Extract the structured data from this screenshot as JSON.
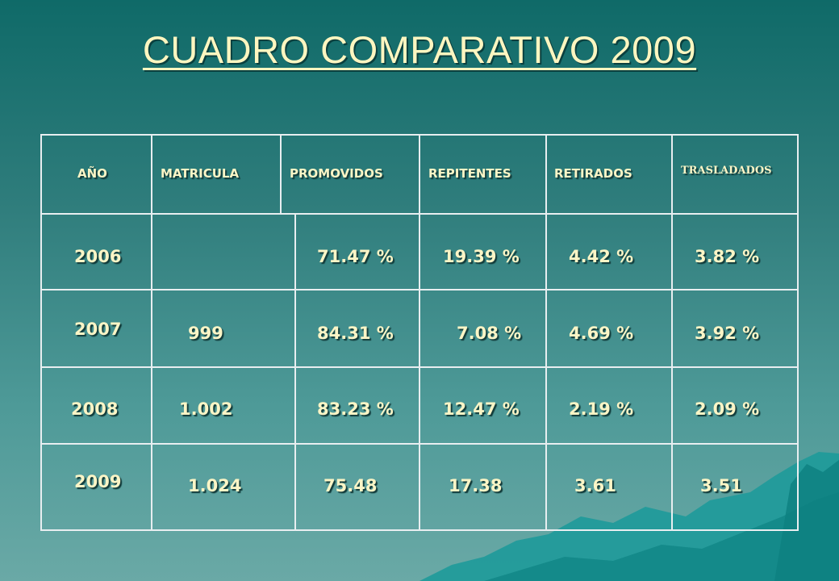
{
  "title": "CUADRO COMPARATIVO 2009",
  "table": {
    "headers": [
      "AÑO",
      "MATRICULA",
      "PROMOVIDOS",
      "REPITENTES",
      "RETIRADOS",
      "TRASLADADOS"
    ],
    "rows": [
      [
        "2006",
        "",
        "71.47 %",
        "19.39 %",
        "4.42 %",
        "3.82 %"
      ],
      [
        "2007",
        "999",
        "84.31 %",
        "7.08 %",
        "4.69 %",
        "3.92 %"
      ],
      [
        "2008",
        "1.002",
        "83.23 %",
        "12.47 %",
        "2.19 %",
        "2.09 %"
      ],
      [
        "2009",
        "1.024",
        "75.48",
        "17.38",
        "3.61",
        "3.51"
      ]
    ]
  },
  "colors": {
    "title": "#fdf6c0",
    "text": "#fbf5c6",
    "grid": "#e8eef0"
  }
}
